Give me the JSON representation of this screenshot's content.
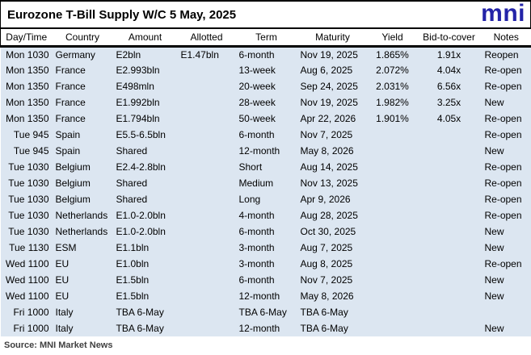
{
  "header": {
    "title": "Eurozone T-Bill Supply W/C 5 May, 2025",
    "logo_text": "mni"
  },
  "footer": {
    "source": "Source: MNI Market News"
  },
  "colors": {
    "logo_blue": "#2323a8",
    "row_bg": "#dce6f1",
    "rule_black": "#000000"
  },
  "chart_data": {
    "type": "table",
    "title": "Eurozone T-Bill Supply W/C 5 May, 2025",
    "columns": [
      "Day/Time",
      "Country",
      "Amount",
      "Allotted",
      "Term",
      "Maturity",
      "Yield",
      "Bid-to-cover",
      "Notes"
    ],
    "rows": [
      [
        "Mon 1030",
        "Germany",
        "E2bln",
        "E1.47bln",
        "6-month",
        "Nov 19, 2025",
        "1.865%",
        "1.91x",
        "Reopen"
      ],
      [
        "Mon 1350",
        "France",
        "E2.993bln",
        "",
        "13-week",
        "Aug 6, 2025",
        "2.072%",
        "4.04x",
        "Re-open"
      ],
      [
        "Mon 1350",
        "France",
        "E498mln",
        "",
        "20-week",
        "Sep 24, 2025",
        "2.031%",
        "6.56x",
        "Re-open"
      ],
      [
        "Mon 1350",
        "France",
        "E1.992bln",
        "",
        "28-week",
        "Nov 19, 2025",
        "1.982%",
        "3.25x",
        "New"
      ],
      [
        "Mon 1350",
        "France",
        "E1.794bln",
        "",
        "50-week",
        "Apr 22, 2026",
        "1.901%",
        "4.05x",
        "Re-open"
      ],
      [
        "Tue 945",
        "Spain",
        "E5.5-6.5bln",
        "",
        "6-month",
        "Nov 7, 2025",
        "",
        "",
        "Re-open"
      ],
      [
        "Tue 945",
        "Spain",
        "Shared",
        "",
        "12-month",
        "May 8, 2026",
        "",
        "",
        "New"
      ],
      [
        "Tue 1030",
        "Belgium",
        "E2.4-2.8bln",
        "",
        "Short",
        "Aug 14, 2025",
        "",
        "",
        "Re-open"
      ],
      [
        "Tue 1030",
        "Belgium",
        "Shared",
        "",
        "Medium",
        "Nov 13, 2025",
        "",
        "",
        "Re-open"
      ],
      [
        "Tue 1030",
        "Belgium",
        "Shared",
        "",
        "Long",
        "Apr 9, 2026",
        "",
        "",
        "Re-open"
      ],
      [
        "Tue 1030",
        "Netherlands",
        "E1.0-2.0bln",
        "",
        "4-month",
        "Aug 28, 2025",
        "",
        "",
        "Re-open"
      ],
      [
        "Tue 1030",
        "Netherlands",
        "E1.0-2.0bln",
        "",
        "6-month",
        "Oct 30, 2025",
        "",
        "",
        "New"
      ],
      [
        "Tue 1130",
        "ESM",
        "E1.1bln",
        "",
        "3-month",
        "Aug 7, 2025",
        "",
        "",
        "New"
      ],
      [
        "Wed 1100",
        "EU",
        "E1.0bln",
        "",
        "3-month",
        "Aug 8, 2025",
        "",
        "",
        "Re-open"
      ],
      [
        "Wed 1100",
        "EU",
        "E1.5bln",
        "",
        "6-month",
        "Nov 7, 2025",
        "",
        "",
        "New"
      ],
      [
        "Wed 1100",
        "EU",
        "E1.5bln",
        "",
        "12-month",
        "May 8, 2026",
        "",
        "",
        "New"
      ],
      [
        "Fri 1000",
        "Italy",
        "TBA 6-May",
        "",
        "TBA 6-May",
        "TBA 6-May",
        "",
        "",
        ""
      ],
      [
        "Fri 1000",
        "Italy",
        "TBA 6-May",
        "",
        "12-month",
        "TBA 6-May",
        "",
        "",
        "New"
      ]
    ]
  }
}
